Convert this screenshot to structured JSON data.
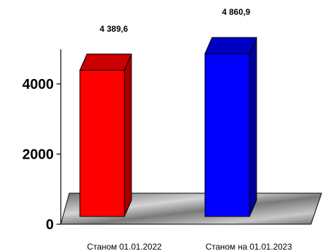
{
  "chart_data": {
    "type": "bar",
    "categories": [
      "Станом 01.01.2022",
      "Станом на 01.01.2023"
    ],
    "values": [
      4389.6,
      4860.9
    ],
    "data_labels": [
      "4 389,6",
      "4 860,9"
    ],
    "ylim": [
      0,
      4900
    ],
    "yticks": [
      0,
      2000,
      4000
    ],
    "ytick_labels": [
      "0",
      "2000",
      "4000"
    ],
    "style": "3d-column",
    "grid": false,
    "legend": "none",
    "colors": [
      "#ff0000",
      "#0000ff"
    ]
  }
}
